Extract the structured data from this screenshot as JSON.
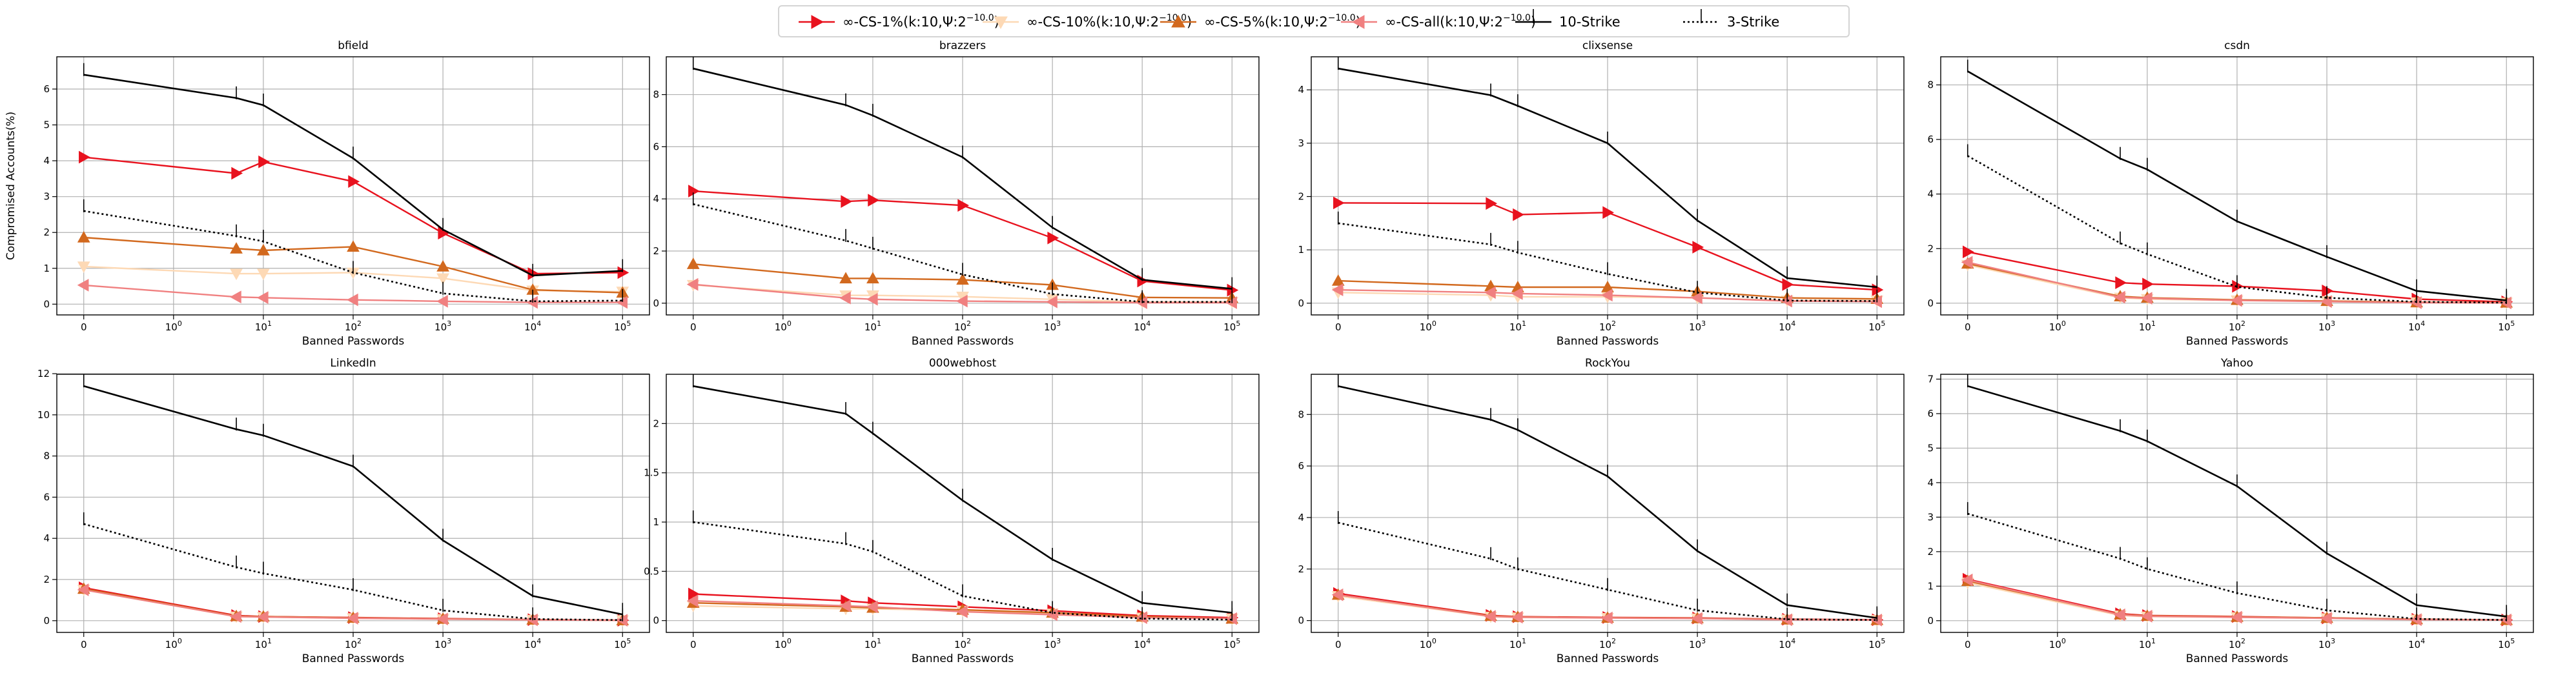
{
  "figure": {
    "ylabel": "Compromised Accounts(%)",
    "xlabel": "Banned Passwords"
  },
  "legend": [
    {
      "key": "cs1",
      "label": "∞-CS-1%(k:10,Ψ:2",
      "sup": "−10.0",
      "tail": ")",
      "color": "#e8121e",
      "marker": "tri-right",
      "line": "solid"
    },
    {
      "key": "cs10",
      "label": "∞-CS-10%(k:10,Ψ:2",
      "sup": "−10.0",
      "tail": ")",
      "color": "#fdd9b5",
      "marker": "tri-down",
      "line": "solid"
    },
    {
      "key": "cs5",
      "label": "∞-CS-5%(k:10,Ψ:2",
      "sup": "−10.0",
      "tail": ")",
      "color": "#d2691e",
      "marker": "tri-up",
      "line": "solid"
    },
    {
      "key": "csall",
      "label": "∞-CS-all(k:10,Ψ:2",
      "sup": "−10.0",
      "tail": ")",
      "color": "#f08080",
      "marker": "tri-left",
      "line": "solid"
    },
    {
      "key": "s10",
      "label": "10-Strike",
      "sup": "",
      "tail": "",
      "color": "#000000",
      "marker": "tick",
      "line": "solid"
    },
    {
      "key": "s3",
      "label": "3-Strike",
      "sup": "",
      "tail": "",
      "color": "#000000",
      "marker": "tick",
      "line": "dotted"
    }
  ],
  "chart_data": [
    {
      "type": "line",
      "title": "bfield",
      "xlabel": "Banned Passwords",
      "ylabel": "Compromised Accounts(%)",
      "x": [
        0,
        5,
        10,
        100,
        1000,
        10000,
        100000
      ],
      "xscale": "symlog",
      "ylim": [
        -0.3,
        6.9
      ],
      "yticks": [
        0,
        1,
        2,
        3,
        4,
        5,
        6
      ],
      "grid": true,
      "series": [
        {
          "name": "∞-CS-1%",
          "values": [
            4.1,
            3.65,
            3.97,
            3.42,
            1.98,
            0.85,
            0.88
          ]
        },
        {
          "name": "∞-CS-10%",
          "values": [
            1.05,
            0.85,
            0.85,
            0.88,
            0.72,
            0.38,
            0.35
          ]
        },
        {
          "name": "∞-CS-5%",
          "values": [
            1.86,
            1.55,
            1.5,
            1.6,
            1.05,
            0.4,
            0.32
          ]
        },
        {
          "name": "∞-CS-all",
          "values": [
            0.53,
            0.2,
            0.18,
            0.12,
            0.08,
            0.05,
            0.05
          ]
        },
        {
          "name": "10-Strike",
          "values": [
            6.4,
            5.75,
            5.55,
            4.07,
            2.08,
            0.8,
            0.93
          ]
        },
        {
          "name": "3-Strike",
          "values": [
            2.6,
            1.9,
            1.75,
            0.88,
            0.3,
            0.08,
            0.1
          ]
        }
      ]
    },
    {
      "type": "line",
      "title": "brazzers",
      "xlabel": "Banned Passwords",
      "ylabel": "",
      "x": [
        0,
        5,
        10,
        100,
        1000,
        10000,
        100000
      ],
      "xscale": "symlog",
      "ylim": [
        -0.45,
        9.45
      ],
      "yticks": [
        0,
        2,
        4,
        6,
        8
      ],
      "grid": true,
      "series": [
        {
          "name": "∞-CS-1%",
          "values": [
            4.3,
            3.9,
            3.95,
            3.75,
            2.5,
            0.85,
            0.5
          ]
        },
        {
          "name": "∞-CS-10%",
          "values": [
            0.7,
            0.3,
            0.3,
            0.25,
            0.15,
            0.05,
            0.05
          ]
        },
        {
          "name": "∞-CS-5%",
          "values": [
            1.5,
            0.95,
            0.95,
            0.9,
            0.7,
            0.22,
            0.2
          ]
        },
        {
          "name": "∞-CS-all",
          "values": [
            0.72,
            0.2,
            0.15,
            0.08,
            0.05,
            0.02,
            0.02
          ]
        },
        {
          "name": "10-Strike",
          "values": [
            9.0,
            7.6,
            7.2,
            5.6,
            2.9,
            0.9,
            0.55
          ]
        },
        {
          "name": "3-Strike",
          "values": [
            3.8,
            2.4,
            2.1,
            1.1,
            0.35,
            0.05,
            0.05
          ]
        }
      ]
    },
    {
      "type": "line",
      "title": "clixsense",
      "xlabel": "Banned Passwords",
      "ylabel": "",
      "x": [
        0,
        5,
        10,
        100,
        1000,
        10000,
        100000
      ],
      "xscale": "symlog",
      "ylim": [
        -0.22,
        4.62
      ],
      "yticks": [
        0,
        1,
        2,
        3,
        4
      ],
      "grid": true,
      "series": [
        {
          "name": "∞-CS-1%",
          "values": [
            1.88,
            1.87,
            1.66,
            1.7,
            1.05,
            0.35,
            0.25
          ]
        },
        {
          "name": "∞-CS-10%",
          "values": [
            0.2,
            0.15,
            0.12,
            0.12,
            0.1,
            0.05,
            0.05
          ]
        },
        {
          "name": "∞-CS-5%",
          "values": [
            0.42,
            0.32,
            0.3,
            0.3,
            0.22,
            0.1,
            0.08
          ]
        },
        {
          "name": "∞-CS-all",
          "values": [
            0.25,
            0.2,
            0.18,
            0.15,
            0.1,
            0.04,
            0.03
          ]
        },
        {
          "name": "10-Strike",
          "values": [
            4.4,
            3.9,
            3.7,
            3.0,
            1.55,
            0.47,
            0.3
          ]
        },
        {
          "name": "3-Strike",
          "values": [
            1.5,
            1.1,
            0.95,
            0.55,
            0.2,
            0.05,
            0.04
          ]
        }
      ]
    },
    {
      "type": "line",
      "title": "csdn",
      "xlabel": "Banned Passwords",
      "ylabel": "",
      "x": [
        0,
        5,
        10,
        100,
        1000,
        10000,
        100000
      ],
      "xscale": "symlog",
      "ylim": [
        -0.43,
        9.03
      ],
      "yticks": [
        0,
        2,
        4,
        6,
        8
      ],
      "grid": true,
      "series": [
        {
          "name": "∞-CS-1%",
          "values": [
            1.88,
            0.75,
            0.7,
            0.62,
            0.45,
            0.15,
            0.05
          ]
        },
        {
          "name": "∞-CS-10%",
          "values": [
            1.4,
            0.2,
            0.15,
            0.1,
            0.08,
            0.03,
            0.02
          ]
        },
        {
          "name": "∞-CS-5%",
          "values": [
            1.45,
            0.25,
            0.2,
            0.12,
            0.08,
            0.03,
            0.02
          ]
        },
        {
          "name": "∞-CS-all",
          "values": [
            1.5,
            0.22,
            0.18,
            0.1,
            0.06,
            0.02,
            0.01
          ]
        },
        {
          "name": "10-Strike",
          "values": [
            8.5,
            5.3,
            4.9,
            3.0,
            1.7,
            0.45,
            0.1
          ]
        },
        {
          "name": "3-Strike",
          "values": [
            5.4,
            2.2,
            1.8,
            0.6,
            0.2,
            0.05,
            0.02
          ]
        }
      ]
    },
    {
      "type": "line",
      "title": "LinkedIn",
      "xlabel": "Banned Passwords",
      "ylabel": "",
      "x": [
        0,
        5,
        10,
        100,
        1000,
        10000,
        100000
      ],
      "xscale": "symlog",
      "ylim": [
        -0.57,
        11.97
      ],
      "yticks": [
        0,
        2,
        4,
        6,
        8,
        10,
        12
      ],
      "grid": true,
      "series": [
        {
          "name": "∞-CS-1%",
          "values": [
            1.6,
            0.25,
            0.2,
            0.15,
            0.1,
            0.05,
            0.02
          ]
        },
        {
          "name": "∞-CS-10%",
          "values": [
            1.5,
            0.2,
            0.18,
            0.12,
            0.08,
            0.04,
            0.02
          ]
        },
        {
          "name": "∞-CS-5%",
          "values": [
            1.55,
            0.22,
            0.2,
            0.14,
            0.09,
            0.05,
            0.02
          ]
        },
        {
          "name": "∞-CS-all",
          "values": [
            1.5,
            0.2,
            0.18,
            0.12,
            0.08,
            0.04,
            0.02
          ]
        },
        {
          "name": "10-Strike",
          "values": [
            11.4,
            9.3,
            9.0,
            7.5,
            3.9,
            1.2,
            0.3
          ]
        },
        {
          "name": "3-Strike",
          "values": [
            4.7,
            2.6,
            2.3,
            1.5,
            0.5,
            0.08,
            0.03
          ]
        }
      ]
    },
    {
      "type": "line",
      "title": "000webhost",
      "xlabel": "Banned Passwords",
      "ylabel": "",
      "x": [
        0,
        5,
        10,
        100,
        1000,
        10000,
        100000
      ],
      "xscale": "symlog",
      "ylim": [
        -0.12,
        2.5
      ],
      "yticks": [
        0,
        0.5,
        1.0,
        1.5,
        2.0
      ],
      "grid": true,
      "series": [
        {
          "name": "∞-CS-1%",
          "values": [
            0.27,
            0.2,
            0.18,
            0.14,
            0.1,
            0.05,
            0.03
          ]
        },
        {
          "name": "∞-CS-10%",
          "values": [
            0.15,
            0.12,
            0.12,
            0.1,
            0.07,
            0.03,
            0.02
          ]
        },
        {
          "name": "∞-CS-5%",
          "values": [
            0.18,
            0.14,
            0.13,
            0.11,
            0.08,
            0.04,
            0.02
          ]
        },
        {
          "name": "∞-CS-all",
          "values": [
            0.2,
            0.15,
            0.14,
            0.09,
            0.06,
            0.03,
            0.02
          ]
        },
        {
          "name": "10-Strike",
          "values": [
            2.38,
            2.1,
            1.9,
            1.22,
            0.62,
            0.18,
            0.08
          ]
        },
        {
          "name": "3-Strike",
          "values": [
            1.0,
            0.78,
            0.7,
            0.25,
            0.08,
            0.02,
            0.01
          ]
        }
      ]
    },
    {
      "type": "line",
      "title": "RockYou",
      "xlabel": "Banned Passwords",
      "ylabel": "",
      "x": [
        0,
        5,
        10,
        100,
        1000,
        10000,
        100000
      ],
      "xscale": "symlog",
      "ylim": [
        -0.46,
        9.56
      ],
      "yticks": [
        0,
        2,
        4,
        6,
        8
      ],
      "grid": true,
      "series": [
        {
          "name": "∞-CS-1%",
          "values": [
            1.05,
            0.2,
            0.15,
            0.12,
            0.1,
            0.05,
            0.03
          ]
        },
        {
          "name": "∞-CS-10%",
          "values": [
            0.95,
            0.15,
            0.12,
            0.1,
            0.08,
            0.04,
            0.02
          ]
        },
        {
          "name": "∞-CS-5%",
          "values": [
            1.0,
            0.18,
            0.14,
            0.11,
            0.09,
            0.04,
            0.02
          ]
        },
        {
          "name": "∞-CS-all",
          "values": [
            1.0,
            0.16,
            0.13,
            0.1,
            0.08,
            0.03,
            0.02
          ]
        },
        {
          "name": "10-Strike",
          "values": [
            9.1,
            7.8,
            7.4,
            5.6,
            2.7,
            0.6,
            0.1
          ]
        },
        {
          "name": "3-Strike",
          "values": [
            3.8,
            2.4,
            2.0,
            1.2,
            0.4,
            0.05,
            0.02
          ]
        }
      ]
    },
    {
      "type": "line",
      "title": "Yahoo",
      "xlabel": "Banned Passwords",
      "ylabel": "",
      "x": [
        0,
        5,
        10,
        100,
        1000,
        10000,
        100000
      ],
      "xscale": "symlog",
      "ylim": [
        -0.34,
        7.14
      ],
      "yticks": [
        0,
        1,
        2,
        3,
        4,
        5,
        6,
        7
      ],
      "grid": true,
      "series": [
        {
          "name": "∞-CS-1%",
          "values": [
            1.2,
            0.2,
            0.15,
            0.12,
            0.08,
            0.04,
            0.02
          ]
        },
        {
          "name": "∞-CS-10%",
          "values": [
            1.1,
            0.15,
            0.12,
            0.1,
            0.07,
            0.03,
            0.02
          ]
        },
        {
          "name": "∞-CS-5%",
          "values": [
            1.15,
            0.18,
            0.14,
            0.11,
            0.08,
            0.04,
            0.02
          ]
        },
        {
          "name": "∞-CS-all",
          "values": [
            1.18,
            0.17,
            0.13,
            0.1,
            0.07,
            0.03,
            0.02
          ]
        },
        {
          "name": "10-Strike",
          "values": [
            6.8,
            5.5,
            5.2,
            3.9,
            1.95,
            0.45,
            0.12
          ]
        },
        {
          "name": "3-Strike",
          "values": [
            3.1,
            1.8,
            1.5,
            0.8,
            0.3,
            0.05,
            0.02
          ]
        }
      ]
    }
  ]
}
